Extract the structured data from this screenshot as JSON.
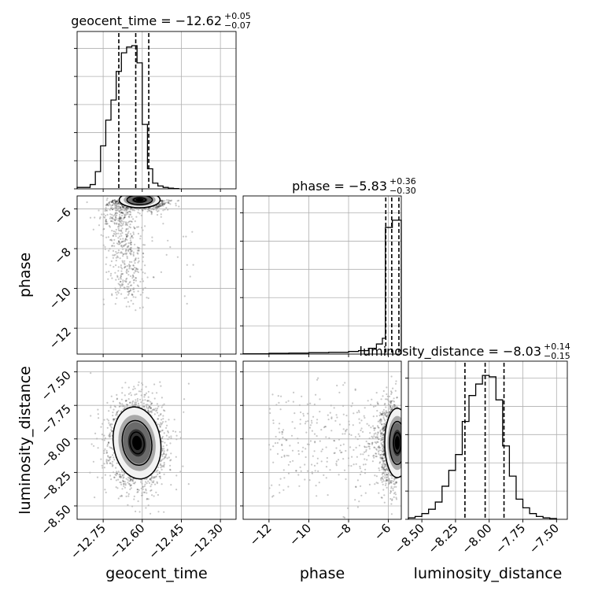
{
  "chart_data": {
    "type": "corner",
    "parameters": [
      "geocent_time",
      "phase",
      "luminosity_distance"
    ],
    "titles": [
      {
        "name": "geocent_time",
        "prefix": "geocent_time = −12.62",
        "plus": "+0.05",
        "minus": "−0.07"
      },
      {
        "name": "phase",
        "prefix": "phase = −5.83",
        "plus": "+0.36",
        "minus": "−0.30"
      },
      {
        "name": "luminosity_distance",
        "prefix": "luminosity_distance = −8.03",
        "plus": "+0.14",
        "minus": "−0.15"
      }
    ],
    "axis_labels": {
      "geocent_time": "geocent_time",
      "phase": "phase",
      "luminosity_distance": "luminosity_distance"
    },
    "ranges": {
      "geocent_time": [
        -12.85,
        -12.24
      ],
      "phase": [
        -13.3,
        -5.35
      ],
      "luminosity_distance": [
        -8.6,
        -7.42
      ]
    },
    "ticks": {
      "geocent_time": {
        "values": [
          -12.75,
          -12.6,
          -12.45,
          -12.3
        ],
        "labels": [
          "−12.75",
          "−12.60",
          "−12.45",
          "−12.30"
        ]
      },
      "phase": {
        "values": [
          -12,
          -10,
          -8,
          -6
        ],
        "labels": [
          "−12",
          "−10",
          "−8",
          "−6"
        ]
      },
      "luminosity_distance": {
        "values": [
          -8.5,
          -8.25,
          -8.0,
          -7.75,
          -7.5
        ],
        "labels": [
          "−8.50",
          "−8.25",
          "−8.00",
          "−7.75",
          "−7.50"
        ]
      }
    },
    "quantiles": {
      "geocent_time": [
        -12.69,
        -12.625,
        -12.575
      ],
      "phase": [
        -6.13,
        -5.83,
        -5.47
      ],
      "luminosity_distance": [
        -8.18,
        -8.03,
        -7.89
      ]
    },
    "histograms": {
      "geocent_time": {
        "bin_edges": [
          -12.85,
          -12.8,
          -12.78,
          -12.76,
          -12.74,
          -12.72,
          -12.7,
          -12.68,
          -12.66,
          -12.64,
          -12.62,
          -12.6,
          -12.58,
          -12.56,
          -12.54,
          -12.52,
          -12.5,
          -12.48,
          -12.46
        ],
        "counts": [
          0.01,
          0.03,
          0.12,
          0.3,
          0.48,
          0.62,
          0.82,
          0.95,
          0.99,
          1.0,
          0.88,
          0.45,
          0.14,
          0.04,
          0.02,
          0.01,
          0.005,
          0.002
        ]
      },
      "phase": {
        "bin_edges": [
          -13.3,
          -12.0,
          -11.0,
          -10.0,
          -9.0,
          -8.0,
          -7.5,
          -7.0,
          -6.6,
          -6.3,
          -6.15,
          -6.0,
          -5.8,
          -5.6,
          -5.35
        ],
        "counts": [
          0.002,
          0.005,
          0.007,
          0.01,
          0.012,
          0.018,
          0.024,
          0.04,
          0.07,
          0.11,
          0.88,
          0.88,
          0.93,
          0.93
        ]
      },
      "luminosity_distance": {
        "bin_edges": [
          -8.6,
          -8.55,
          -8.5,
          -8.45,
          -8.4,
          -8.35,
          -8.3,
          -8.25,
          -8.2,
          -8.15,
          -8.1,
          -8.05,
          -8.0,
          -7.95,
          -7.9,
          -7.85,
          -7.8,
          -7.75,
          -7.7,
          -7.65,
          -7.6,
          -7.55,
          -7.5
        ],
        "counts": [
          0.01,
          0.02,
          0.04,
          0.07,
          0.12,
          0.23,
          0.34,
          0.45,
          0.68,
          0.86,
          0.94,
          1.0,
          0.99,
          0.83,
          0.51,
          0.3,
          0.14,
          0.08,
          0.04,
          0.02,
          0.01,
          0.005
        ]
      }
    },
    "density_centers": {
      "geocent_time_vs_phase": [
        -12.61,
        -5.55
      ],
      "geocent_time_vs_luminosity_distance": [
        -12.62,
        -8.03
      ],
      "phase_vs_luminosity_distance": [
        -5.7,
        -8.03
      ]
    },
    "grid": true
  }
}
